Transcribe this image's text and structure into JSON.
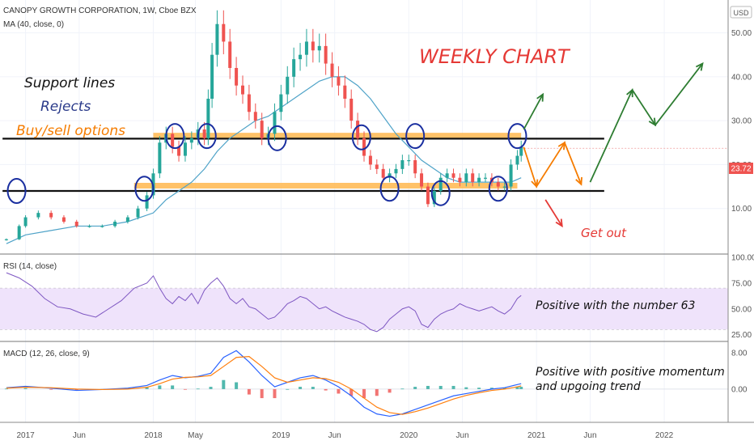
{
  "header": {
    "title": "CANOPY GROWTH CORPORATION, 1W, Cboe BZX",
    "ma_legend": "MA (40, close, 0)",
    "currency": "USD"
  },
  "annotations": {
    "weekly": "WEEKLY CHART",
    "support": "Support lines",
    "rejects": "Rejects",
    "buysell": "Buy/sell options",
    "getout": "Get out",
    "rsi_note": "Positive with the number 63",
    "macd_note_1": "Positive with positive momentum",
    "macd_note_2": "and upgoing trend"
  },
  "colors": {
    "up": "#26a69a",
    "down": "#ef5350",
    "ma": "#4fa3c8",
    "rsi": "#7e57c2",
    "rsi_band": "#efe3fb",
    "macd": "#2962ff",
    "signal": "#ff7f0e",
    "support_band": "#ffb74d",
    "circle": "#1a2fa0",
    "arrow_green": "#2e7d32",
    "arrow_orange": "#f57c00",
    "arrow_red": "#e53935",
    "weekly_red": "#e53935",
    "rejects_navy": "#2a3a8a",
    "price_tag": "#ef5350"
  },
  "chart_data": [
    {
      "type": "candlestick",
      "panel": "price",
      "title": "CANOPY GROWTH CORPORATION, 1W, Cboe BZX",
      "series": [
        {
          "name": "Price (weekly close)",
          "x": [
            2016.85,
            2016.95,
            2017.0,
            2017.1,
            2017.2,
            2017.3,
            2017.4,
            2017.5,
            2017.6,
            2017.7,
            2017.8,
            2017.88,
            2017.95,
            2018.0,
            2018.05,
            2018.1,
            2018.15,
            2018.2,
            2018.25,
            2018.3,
            2018.35,
            2018.4,
            2018.43,
            2018.46,
            2018.5,
            2018.55,
            2018.6,
            2018.65,
            2018.7,
            2018.75,
            2018.8,
            2018.85,
            2018.9,
            2018.95,
            2019.0,
            2019.05,
            2019.1,
            2019.15,
            2019.2,
            2019.25,
            2019.3,
            2019.35,
            2019.4,
            2019.45,
            2019.5,
            2019.55,
            2019.6,
            2019.65,
            2019.7,
            2019.75,
            2019.8,
            2019.85,
            2019.9,
            2019.95,
            2020.0,
            2020.05,
            2020.1,
            2020.15,
            2020.2,
            2020.25,
            2020.3,
            2020.35,
            2020.4,
            2020.45,
            2020.5,
            2020.55,
            2020.6,
            2020.65,
            2020.7,
            2020.75,
            2020.8,
            2020.85,
            2020.88
          ],
          "values": [
            3,
            6,
            8,
            9,
            8,
            7,
            6,
            6,
            6,
            7,
            8,
            10,
            13,
            18,
            25,
            27,
            24,
            22,
            25,
            26,
            28,
            26,
            35,
            45,
            52,
            48,
            42,
            38,
            36,
            32,
            30,
            26,
            27,
            32,
            36,
            40,
            44,
            45,
            48,
            46,
            47,
            43,
            40,
            38,
            35,
            30,
            26,
            22,
            20,
            19,
            17,
            18,
            19,
            21,
            21,
            18,
            15,
            11,
            14,
            17,
            18,
            17,
            16,
            18,
            16,
            17,
            17,
            16,
            15,
            15,
            20,
            22,
            24
          ],
          "ohlc": "approximate"
        },
        {
          "name": "MA 40",
          "x": [
            2016.85,
            2017.0,
            2017.2,
            2017.4,
            2017.6,
            2017.8,
            2018.0,
            2018.1,
            2018.2,
            2018.3,
            2018.4,
            2018.5,
            2018.6,
            2018.7,
            2018.8,
            2018.9,
            2019.0,
            2019.1,
            2019.2,
            2019.3,
            2019.4,
            2019.5,
            2019.6,
            2019.7,
            2019.8,
            2019.9,
            2020.0,
            2020.1,
            2020.2,
            2020.3,
            2020.4,
            2020.5,
            2020.6,
            2020.7,
            2020.8,
            2020.88
          ],
          "values": [
            2,
            4,
            5,
            6,
            6,
            7,
            9,
            12,
            14,
            16,
            19,
            23,
            26,
            28,
            30,
            31,
            33,
            35,
            37,
            39,
            40,
            40,
            38,
            35,
            31,
            27,
            24,
            21,
            19,
            17,
            16,
            16,
            16,
            16,
            16,
            17
          ]
        }
      ],
      "xlim": [
        2016.8,
        2022.5
      ],
      "ylim": [
        0,
        56
      ],
      "yticks": [
        10.0,
        20.0,
        30.0,
        40.0,
        50.0
      ],
      "current_price": "23.72",
      "support_lines": [
        25.9,
        14.0
      ],
      "support_bands": [
        26.5,
        15.2
      ]
    },
    {
      "type": "line",
      "panel": "rsi",
      "legend": "RSI (14, close)",
      "series": [
        {
          "name": "RSI",
          "x": [
            2016.85,
            2016.95,
            2017.05,
            2017.15,
            2017.25,
            2017.35,
            2017.45,
            2017.55,
            2017.65,
            2017.75,
            2017.85,
            2017.95,
            2018.0,
            2018.05,
            2018.1,
            2018.15,
            2018.2,
            2018.25,
            2018.3,
            2018.35,
            2018.4,
            2018.45,
            2018.5,
            2018.55,
            2018.6,
            2018.65,
            2018.7,
            2018.75,
            2018.8,
            2018.85,
            2018.9,
            2018.95,
            2019.0,
            2019.05,
            2019.1,
            2019.15,
            2019.2,
            2019.25,
            2019.3,
            2019.35,
            2019.4,
            2019.45,
            2019.5,
            2019.55,
            2019.6,
            2019.65,
            2019.7,
            2019.75,
            2019.8,
            2019.85,
            2019.9,
            2019.95,
            2020.0,
            2020.05,
            2020.1,
            2020.15,
            2020.2,
            2020.25,
            2020.3,
            2020.35,
            2020.4,
            2020.45,
            2020.5,
            2020.55,
            2020.6,
            2020.65,
            2020.7,
            2020.75,
            2020.8,
            2020.85,
            2020.88
          ],
          "values": [
            85,
            80,
            72,
            60,
            52,
            50,
            45,
            42,
            50,
            58,
            70,
            75,
            82,
            70,
            60,
            55,
            62,
            58,
            65,
            55,
            68,
            75,
            80,
            72,
            60,
            55,
            60,
            52,
            50,
            45,
            40,
            42,
            48,
            55,
            58,
            62,
            60,
            55,
            50,
            52,
            48,
            45,
            42,
            40,
            38,
            35,
            30,
            28,
            32,
            40,
            45,
            50,
            52,
            48,
            35,
            32,
            40,
            45,
            48,
            50,
            55,
            52,
            50,
            48,
            50,
            52,
            48,
            45,
            50,
            60,
            63
          ]
        }
      ],
      "ylim": [
        20,
        100
      ],
      "yticks": [
        25.0,
        50.0,
        75.0,
        100.0
      ],
      "band": [
        30,
        70
      ]
    },
    {
      "type": "line",
      "panel": "macd",
      "legend": "MACD (12, 26, close, 9)",
      "series": [
        {
          "name": "MACD",
          "x": [
            2016.85,
            2017.0,
            2017.2,
            2017.4,
            2017.6,
            2017.8,
            2017.95,
            2018.05,
            2018.15,
            2018.25,
            2018.35,
            2018.45,
            2018.55,
            2018.65,
            2018.75,
            2018.85,
            2018.95,
            2019.05,
            2019.15,
            2019.25,
            2019.35,
            2019.45,
            2019.55,
            2019.65,
            2019.75,
            2019.85,
            2019.95,
            2020.05,
            2020.15,
            2020.25,
            2020.35,
            2020.45,
            2020.55,
            2020.65,
            2020.75,
            2020.85,
            2020.88
          ],
          "values": [
            0.3,
            0.6,
            0.2,
            -0.3,
            -0.1,
            0.2,
            0.8,
            2.0,
            3.0,
            2.5,
            2.8,
            3.5,
            7.0,
            8.5,
            6.0,
            3.0,
            0.5,
            1.5,
            2.5,
            3.0,
            2.0,
            0.5,
            -1.5,
            -4.0,
            -5.5,
            -6.0,
            -5.5,
            -4.5,
            -3.5,
            -2.5,
            -1.5,
            -1.0,
            -0.5,
            0.0,
            0.3,
            1.0,
            1.2
          ]
        },
        {
          "name": "Signal",
          "x": [
            2016.85,
            2017.0,
            2017.2,
            2017.4,
            2017.6,
            2017.8,
            2017.95,
            2018.05,
            2018.15,
            2018.25,
            2018.35,
            2018.45,
            2018.55,
            2018.65,
            2018.75,
            2018.85,
            2018.95,
            2019.05,
            2019.15,
            2019.25,
            2019.35,
            2019.45,
            2019.55,
            2019.65,
            2019.75,
            2019.85,
            2019.95,
            2020.05,
            2020.15,
            2020.25,
            2020.35,
            2020.45,
            2020.55,
            2020.65,
            2020.75,
            2020.85,
            2020.88
          ],
          "values": [
            0.2,
            0.4,
            0.3,
            0.0,
            -0.1,
            0.0,
            0.4,
            1.2,
            2.2,
            2.6,
            2.7,
            3.0,
            5.0,
            7.0,
            7.2,
            5.0,
            2.5,
            1.5,
            2.0,
            2.5,
            2.3,
            1.5,
            0.0,
            -2.0,
            -4.0,
            -5.2,
            -5.6,
            -5.0,
            -4.2,
            -3.2,
            -2.2,
            -1.4,
            -0.8,
            -0.3,
            0.0,
            0.5,
            0.7
          ]
        }
      ],
      "ylim": [
        -7,
        10
      ],
      "yticks": [
        0.0,
        8.0
      ]
    }
  ],
  "xaxis": {
    "ticks": [
      {
        "label": "2017",
        "x": 2017.0
      },
      {
        "label": "Jun",
        "x": 2017.42
      },
      {
        "label": "2018",
        "x": 2018.0
      },
      {
        "label": "May",
        "x": 2018.33
      },
      {
        "label": "2019",
        "x": 2019.0
      },
      {
        "label": "Jun",
        "x": 2019.42
      },
      {
        "label": "2020",
        "x": 2020.0
      },
      {
        "label": "Jun",
        "x": 2020.42
      },
      {
        "label": "2021",
        "x": 2021.0
      },
      {
        "label": "Jun",
        "x": 2021.42
      },
      {
        "label": "2022",
        "x": 2022.0
      }
    ]
  }
}
